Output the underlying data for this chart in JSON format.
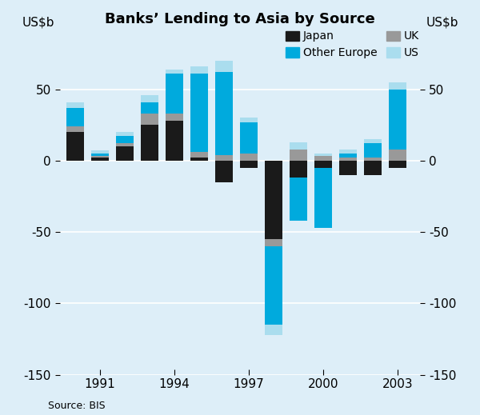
{
  "title": "Banks’ Lending to Asia by Source",
  "ylabel": "US$b",
  "source": "Source: BIS",
  "background_color": "#ddeef8",
  "years": [
    1990,
    1991,
    1992,
    1993,
    1994,
    1995,
    1996,
    1997,
    1998,
    1999,
    2000,
    2001,
    2002,
    2003
  ],
  "japan": [
    20,
    2,
    10,
    25,
    28,
    2,
    -15,
    -5,
    -55,
    -12,
    -5,
    -10,
    -10,
    -5
  ],
  "other_europe": [
    13,
    2,
    5,
    8,
    28,
    55,
    58,
    22,
    -55,
    -30,
    -42,
    3,
    10,
    42
  ],
  "uk": [
    4,
    1,
    2,
    8,
    5,
    4,
    4,
    5,
    -5,
    8,
    3,
    2,
    2,
    8
  ],
  "us": [
    4,
    2,
    3,
    5,
    3,
    5,
    8,
    3,
    -7,
    5,
    2,
    3,
    3,
    5
  ],
  "japan_color": "#1a1a1a",
  "other_europe_color": "#00aadd",
  "uk_color": "#999999",
  "us_color": "#aaddee",
  "ylim": [
    -150,
    90
  ],
  "yticks": [
    -150,
    -100,
    -50,
    0,
    50
  ],
  "xtick_labels": [
    "1991",
    "1994",
    "1997",
    "2000",
    "2003"
  ],
  "xtick_positions": [
    1991,
    1994,
    1997,
    2000,
    2003
  ]
}
